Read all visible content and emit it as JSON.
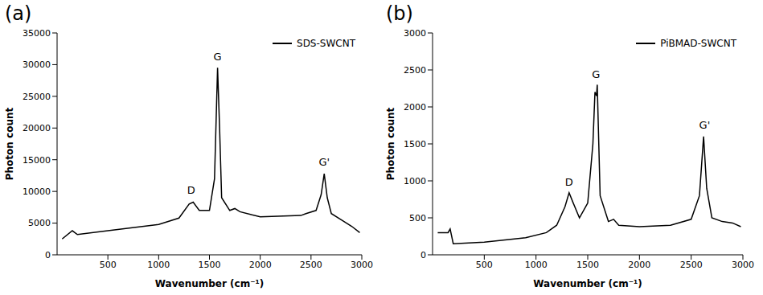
{
  "chart_data": [
    {
      "type": "line",
      "title": "(a)",
      "x_label": "Wavenumber (cm⁻¹)",
      "y_label": "Photon count",
      "x": [
        50,
        150,
        200,
        500,
        1000,
        1200,
        1300,
        1340,
        1400,
        1500,
        1550,
        1580,
        1600,
        1620,
        1700,
        1750,
        1800,
        1920,
        2000,
        2400,
        2450,
        2550,
        2600,
        2630,
        2660,
        2700,
        2800,
        2900,
        2980
      ],
      "series": [
        {
          "name": "SDS-SWCNT",
          "color": "#000000",
          "values": [
            2500,
            3800,
            3200,
            3800,
            4800,
            5800,
            8000,
            8300,
            7000,
            7000,
            12000,
            29500,
            20000,
            9000,
            7000,
            7300,
            6800,
            6300,
            6000,
            6200,
            6500,
            7000,
            9500,
            12800,
            9000,
            6500,
            5500,
            4500,
            3500
          ]
        }
      ],
      "xlim": [
        0,
        3000
      ],
      "xticks": [
        500,
        1000,
        1500,
        2000,
        2500,
        3000
      ],
      "ylim": [
        0,
        35000
      ],
      "yticks": [
        0,
        5000,
        10000,
        15000,
        20000,
        25000,
        30000,
        35000
      ],
      "grid": false,
      "legend": "upper right",
      "annotations": [
        {
          "text": "D",
          "x": 1320,
          "y": 9000
        },
        {
          "text": "G",
          "x": 1580,
          "y": 30000
        },
        {
          "text": "G'",
          "x": 2630,
          "y": 13400
        }
      ]
    },
    {
      "type": "line",
      "title": "(b)",
      "x_label": "Wavenumber (cm⁻¹)",
      "y_label": "Photon count",
      "x": [
        50,
        150,
        170,
        200,
        500,
        900,
        1100,
        1200,
        1280,
        1320,
        1360,
        1420,
        1500,
        1550,
        1570,
        1585,
        1592,
        1620,
        1700,
        1750,
        1800,
        2000,
        2300,
        2500,
        2580,
        2620,
        2650,
        2700,
        2800,
        2900,
        2980
      ],
      "series": [
        {
          "name": "PiBMAD-SWCNT",
          "color": "#000000",
          "values": [
            300,
            300,
            350,
            150,
            170,
            230,
            300,
            400,
            650,
            840,
            700,
            500,
            700,
            1500,
            2200,
            2150,
            2300,
            800,
            450,
            480,
            400,
            380,
            400,
            480,
            800,
            1600,
            900,
            500,
            450,
            430,
            380
          ]
        }
      ],
      "xlim": [
        0,
        3000
      ],
      "xticks": [
        500,
        1000,
        1500,
        2000,
        2500,
        3000
      ],
      "ylim": [
        0,
        3000
      ],
      "yticks": [
        0,
        500,
        1000,
        1500,
        2000,
        2500,
        3000
      ],
      "grid": false,
      "legend": "upper right",
      "annotations": [
        {
          "text": "D",
          "x": 1320,
          "y": 880
        },
        {
          "text": "G",
          "x": 1580,
          "y": 2340
        },
        {
          "text": "G'",
          "x": 2630,
          "y": 1650
        }
      ]
    }
  ]
}
